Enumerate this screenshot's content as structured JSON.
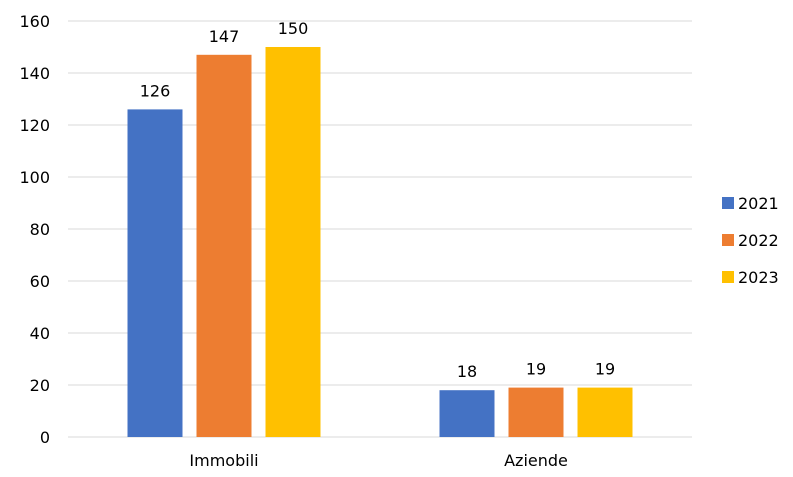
{
  "chart_data": {
    "type": "bar",
    "title": "",
    "xlabel": "",
    "ylabel": "",
    "categories": [
      "Immobili",
      "Aziende"
    ],
    "series": [
      {
        "name": "2021",
        "values": [
          126,
          18
        ],
        "color": "#4472c4"
      },
      {
        "name": "2022",
        "values": [
          147,
          19
        ],
        "color": "#ed7d31"
      },
      {
        "name": "2023",
        "values": [
          150,
          19
        ],
        "color": "#ffc000"
      }
    ],
    "ylim": [
      0,
      160
    ],
    "yticks": [
      0,
      20,
      40,
      60,
      80,
      100,
      120,
      140,
      160
    ],
    "grid": true,
    "legend_position": "right",
    "gridline_color": "#d9d9d9"
  }
}
